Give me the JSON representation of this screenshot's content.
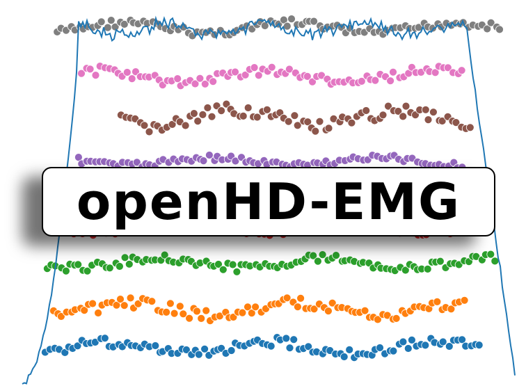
{
  "logo": {
    "text": "openHD-EMG"
  },
  "colors": {
    "background": "#ffffff",
    "envelope": "#1f77b4",
    "rows": [
      "#7f7f7f",
      "#e377c2",
      "#8c564b",
      "#9467bd",
      "#d62728",
      "#2ca02c",
      "#ff7f0e",
      "#1f77b4"
    ],
    "logo_border": "#000000",
    "logo_text": "#000000"
  },
  "icons": {
    "logo": "logo-wordmark"
  }
}
